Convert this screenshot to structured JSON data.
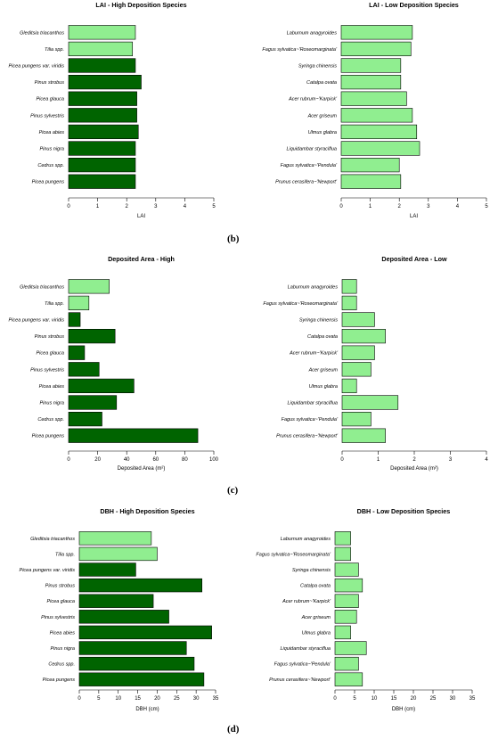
{
  "colors": {
    "high": "#006400",
    "light": "#90ee90",
    "outline": "#000000",
    "axis": "#000000"
  },
  "panel_labels": [
    "(b)",
    "(c)",
    "(d)"
  ],
  "chart_data": [
    {
      "type": "bar",
      "orientation": "horizontal",
      "title": "LAI - High Deposition Species",
      "xlabel": "LAI",
      "ylabel": "",
      "xlim": [
        0,
        5
      ],
      "xticks": [
        0,
        1,
        2,
        3,
        4,
        5
      ],
      "categories": [
        "Gleditsia triacanthos",
        "Tilia spp.",
        "Picea pungens var. viridis",
        "Pinus strobus",
        "Picea glauca",
        "Pinus sylvestris",
        "Picea abies",
        "Pinus nigra",
        "Cedrus spp.",
        "Picea pungens"
      ],
      "values": [
        2.3,
        2.2,
        2.3,
        2.5,
        2.35,
        2.35,
        2.4,
        2.3,
        2.3,
        2.3
      ],
      "color_keys": [
        "light",
        "light",
        "high",
        "high",
        "high",
        "high",
        "high",
        "high",
        "high",
        "high"
      ]
    },
    {
      "type": "bar",
      "orientation": "horizontal",
      "title": "LAI - Low Deposition Species",
      "xlabel": "LAI",
      "ylabel": "",
      "xlim": [
        0,
        5
      ],
      "xticks": [
        0,
        1,
        2,
        3,
        4,
        5
      ],
      "categories": [
        "Laburnum anagyroides",
        "Fagus sylvatica~'Roseomarginata'",
        "Syringa chinensis",
        "Catalpa ovata",
        "Acer rubrum~'Karpick'",
        "Acer griseum",
        "Ulmus glabra",
        "Liquidambar styraciflua",
        "Fagus sylvatica~'Pendula'",
        "Prunus cerasifera~'Newport'"
      ],
      "values": [
        2.45,
        2.4,
        2.05,
        2.05,
        2.25,
        2.45,
        2.6,
        2.7,
        2.0,
        2.05
      ],
      "color_keys": [
        "light",
        "light",
        "light",
        "light",
        "light",
        "light",
        "light",
        "light",
        "light",
        "light"
      ]
    },
    {
      "type": "bar",
      "orientation": "horizontal",
      "title": "Deposited Area - High",
      "xlabel": "Deposited Area (m²)",
      "ylabel": "",
      "xlim": [
        0,
        100
      ],
      "xticks": [
        0,
        20,
        40,
        60,
        80,
        100
      ],
      "categories": [
        "Gleditsia triacanthos",
        "Tilia spp.",
        "Picea pungens var. viridis",
        "Pinus strobus",
        "Picea glauca",
        "Pinus sylvestris",
        "Picea abies",
        "Pinus nigra",
        "Cedrus spp.",
        "Picea pungens"
      ],
      "values": [
        28,
        14,
        8,
        32,
        11,
        21,
        45,
        33,
        23,
        89
      ],
      "color_keys": [
        "light",
        "light",
        "high",
        "high",
        "high",
        "high",
        "high",
        "high",
        "high",
        "high"
      ]
    },
    {
      "type": "bar",
      "orientation": "horizontal",
      "title": "Deposited Area - Low",
      "xlabel": "Deposited Area (m²)",
      "ylabel": "",
      "xlim": [
        0,
        4
      ],
      "xticks": [
        0,
        1,
        2,
        3,
        4
      ],
      "categories": [
        "Laburnum anagyroides",
        "Fagus sylvatica~'Roseomarginata'",
        "Syringa chinensis",
        "Catalpa ovata",
        "Acer rubrum~'Karpick'",
        "Acer griseum",
        "Ulmus glabra",
        "Liquidambar styraciflua",
        "Fagus sylvatica~'Pendula'",
        "Prunus cerasifera~'Newport'"
      ],
      "values": [
        0.4,
        0.4,
        0.9,
        1.2,
        0.9,
        0.8,
        0.4,
        1.55,
        0.8,
        1.2
      ],
      "color_keys": [
        "light",
        "light",
        "light",
        "light",
        "light",
        "light",
        "light",
        "light",
        "light",
        "light"
      ]
    },
    {
      "type": "bar",
      "orientation": "horizontal",
      "title": "DBH - High Deposition Species",
      "xlabel": "DBH (cm)",
      "ylabel": "",
      "xlim": [
        0,
        35
      ],
      "xticks": [
        0,
        5,
        10,
        15,
        20,
        25,
        30,
        35
      ],
      "categories": [
        "Gleditsia triacanthos",
        "Tilia spp.",
        "Picea pungens var. viridis",
        "Pinus strobus",
        "Picea glauca",
        "Pinus sylvestris",
        "Picea abies",
        "Pinus nigra",
        "Cedrus spp.",
        "Picea pungens"
      ],
      "values": [
        18.5,
        20,
        14.5,
        31.5,
        19,
        23,
        34,
        27.5,
        29.5,
        32
      ],
      "color_keys": [
        "light",
        "light",
        "high",
        "high",
        "high",
        "high",
        "high",
        "high",
        "high",
        "high"
      ]
    },
    {
      "type": "bar",
      "orientation": "horizontal",
      "title": "DBH - Low Deposition Species",
      "xlabel": "DBH (cm)",
      "ylabel": "",
      "xlim": [
        0,
        35
      ],
      "xticks": [
        0,
        5,
        10,
        15,
        20,
        25,
        30,
        35
      ],
      "categories": [
        "Laburnum anagyroides",
        "Fagus sylvatica~'Roseomarginata'",
        "Syringa chinensis",
        "Catalpa ovata",
        "Acer rubrum~'Karpick'",
        "Acer griseum",
        "Ulmus glabra",
        "Liquidambar styraciflua",
        "Fagus sylvatica~'Pendula'",
        "Prunus cerasifera~'Newport'"
      ],
      "values": [
        4,
        4,
        6,
        7,
        6,
        5.5,
        4,
        8,
        6,
        7
      ],
      "color_keys": [
        "light",
        "light",
        "light",
        "light",
        "light",
        "light",
        "light",
        "light",
        "light",
        "light"
      ]
    }
  ]
}
